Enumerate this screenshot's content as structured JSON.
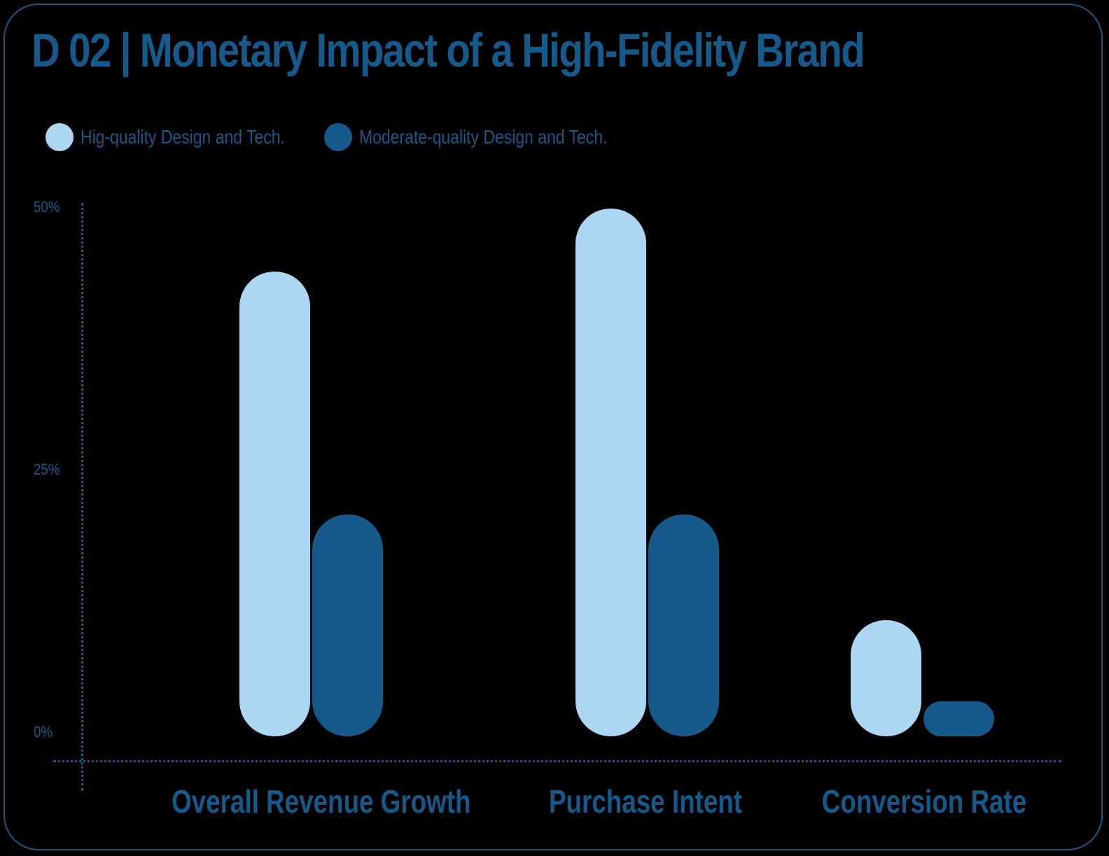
{
  "title": "D 02 | Monetary Impact of a High-Fidelity Brand",
  "colors": {
    "accent": "#155a8a",
    "high": "#acd6f3",
    "moderate": "#155a8a",
    "background": "#000000"
  },
  "legend": [
    {
      "label": "Hig-quality Design and Tech.",
      "color": "#acd6f3"
    },
    {
      "label": "Moderate-quality Design and Tech.",
      "color": "#155a8a"
    }
  ],
  "y_ticks": [
    "50%",
    "25%",
    "0%"
  ],
  "x_labels": [
    "Overall Revenue Growth",
    "Purchase Intent",
    "Conversion Rate"
  ],
  "chart_data": {
    "type": "bar",
    "title": "D 02 | Monetary Impact of a High-Fidelity Brand",
    "categories": [
      "Overall Revenue Growth",
      "Purchase Intent",
      "Conversion Rate"
    ],
    "series": [
      {
        "name": "Hig-quality Design and Tech.",
        "color": "#acd6f3",
        "values": [
          44,
          50,
          11
        ]
      },
      {
        "name": "Moderate-quality Design and Tech.",
        "color": "#155a8a",
        "values": [
          21,
          21,
          3
        ]
      }
    ],
    "xlabel": "",
    "ylabel": "",
    "ylim": [
      0,
      50
    ],
    "y_ticks": [
      "0%",
      "25%",
      "50%"
    ],
    "grid": false,
    "legend_position": "top-left"
  }
}
